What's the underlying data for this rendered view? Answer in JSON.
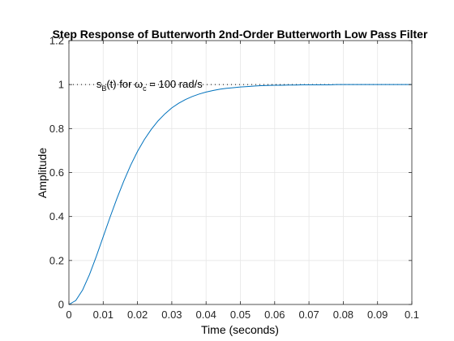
{
  "chart_data": {
    "type": "line",
    "title": "Step Response of Butterworth 2nd-Order Butterworth Low Pass Filter",
    "xlabel": "Time (seconds)",
    "ylabel": "Amplitude",
    "xlim": [
      0,
      0.1
    ],
    "ylim": [
      0,
      1.2
    ],
    "xticks": [
      0,
      0.01,
      0.02,
      0.03,
      0.04,
      0.05,
      0.06,
      0.07,
      0.08,
      0.09,
      0.1
    ],
    "xtick_labels": [
      "0",
      "0.01",
      "0.02",
      "0.03",
      "0.04",
      "0.05",
      "0.06",
      "0.07",
      "0.08",
      "0.09",
      "0.1"
    ],
    "yticks": [
      0,
      0.2,
      0.4,
      0.6,
      0.8,
      1,
      1.2
    ],
    "ytick_labels": [
      "0",
      "0.2",
      "0.4",
      "0.6",
      "0.8",
      "1",
      "1.2"
    ],
    "grid": true,
    "colors": {
      "line": "#0072bd",
      "grid": "#e6e6e6",
      "axes": "#262626",
      "reference": "#000000"
    },
    "series": [
      {
        "x": [
          0,
          0.002,
          0.004,
          0.006,
          0.008,
          0.01,
          0.012,
          0.014,
          0.016,
          0.018,
          0.02,
          0.022,
          0.024,
          0.026,
          0.028,
          0.03,
          0.032,
          0.034,
          0.036,
          0.038,
          0.04,
          0.042,
          0.044,
          0.046,
          0.048,
          0.05,
          0.052,
          0.054,
          0.056,
          0.058,
          0.06,
          0.062,
          0.064,
          0.066,
          0.068,
          0.07,
          0.072,
          0.074,
          0.076,
          0.078,
          0.08,
          0.082,
          0.084,
          0.086,
          0.088,
          0.09,
          0.092,
          0.094,
          0.096,
          0.098,
          0.1
        ],
        "y": [
          0,
          0.018,
          0.066,
          0.136,
          0.219,
          0.308,
          0.397,
          0.482,
          0.561,
          0.633,
          0.696,
          0.75,
          0.796,
          0.835,
          0.867,
          0.894,
          0.915,
          0.932,
          0.946,
          0.957,
          0.966,
          0.973,
          0.979,
          0.983,
          0.986,
          0.989,
          0.991,
          0.993,
          0.995,
          0.996,
          0.997,
          0.997,
          0.998,
          0.998,
          0.999,
          0.999,
          0.999,
          0.999,
          0.999,
          1.0,
          1.0,
          1.0,
          1.0,
          1.0,
          1.0,
          1.0,
          1.0,
          1.0,
          1.0,
          1.0,
          1.0
        ]
      }
    ],
    "reference_line": {
      "y": 1,
      "style": "dotted"
    },
    "annotation": {
      "s_main": "s",
      "s_sub": "B",
      "mid": "(t) for ",
      "omega": "ω",
      "omega_sub": "c",
      "rest": " = 100 rad/s",
      "x": 0.008,
      "y": 1
    }
  }
}
